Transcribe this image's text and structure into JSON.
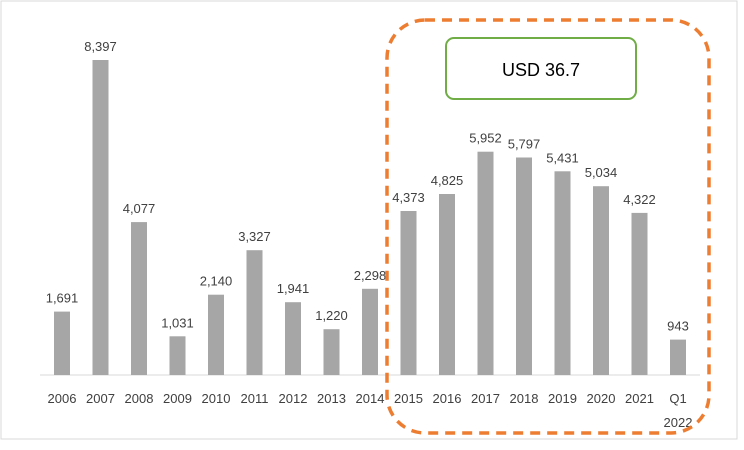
{
  "chart_data": {
    "type": "bar",
    "categories": [
      "2006",
      "2007",
      "2008",
      "2009",
      "2010",
      "2011",
      "2012",
      "2013",
      "2014",
      "2015",
      "2016",
      "2017",
      "2018",
      "2019",
      "2020",
      "2021",
      "Q1 2022"
    ],
    "values": [
      1691,
      8397,
      4077,
      1031,
      2140,
      3327,
      1941,
      1220,
      2298,
      4373,
      4825,
      5952,
      5797,
      5431,
      5034,
      4322,
      943
    ],
    "value_labels": [
      "1,691",
      "8,397",
      "4,077",
      "1,031",
      "2,140",
      "3,327",
      "1,941",
      "1,220",
      "2,298",
      "4,373",
      "4,825",
      "5,952",
      "5,797",
      "5,431",
      "5,034",
      "4,322",
      "943"
    ],
    "title": "",
    "xlabel": "",
    "ylabel": "",
    "ylim": [
      0,
      9000
    ],
    "grid": false,
    "legend": "none",
    "highlight": {
      "from_category": "2015",
      "to_category": "Q1 2022",
      "callout_text": "USD 36.7"
    }
  },
  "colors": {
    "bar": "#a6a6a6",
    "highlight_border": "#ed7d31",
    "callout_border": "#70ad47",
    "axis": "#d9d9d9",
    "text": "#404040",
    "frame": "#d9d9d9"
  }
}
